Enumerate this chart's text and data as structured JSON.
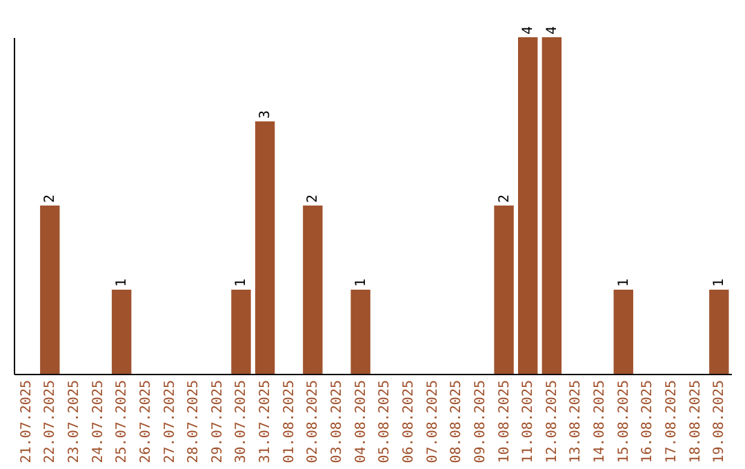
{
  "chart_data": {
    "type": "bar",
    "categories": [
      "21.07.2025",
      "22.07.2025",
      "23.07.2025",
      "24.07.2025",
      "25.07.2025",
      "26.07.2025",
      "27.07.2025",
      "28.07.2025",
      "29.07.2025",
      "30.07.2025",
      "31.07.2025",
      "01.08.2025",
      "02.08.2025",
      "03.08.2025",
      "04.08.2025",
      "05.08.2025",
      "06.08.2025",
      "07.08.2025",
      "08.08.2025",
      "09.08.2025",
      "10.08.2025",
      "11.08.2025",
      "12.08.2025",
      "13.08.2025",
      "14.08.2025",
      "15.08.2025",
      "16.08.2025",
      "17.08.2025",
      "18.08.2025",
      "19.08.2025"
    ],
    "values": [
      0,
      2,
      0,
      0,
      1,
      0,
      0,
      0,
      0,
      1,
      3,
      0,
      2,
      0,
      1,
      0,
      0,
      0,
      0,
      0,
      2,
      4,
      4,
      0,
      0,
      1,
      0,
      0,
      0,
      1
    ],
    "value_labels": [
      null,
      "2",
      null,
      null,
      "1",
      null,
      null,
      null,
      null,
      "1",
      "3",
      null,
      "2",
      null,
      "1",
      null,
      null,
      null,
      null,
      null,
      "2",
      "4",
      "4",
      null,
      null,
      "1",
      null,
      null,
      null,
      "1"
    ],
    "color": "#a0522d"
  }
}
